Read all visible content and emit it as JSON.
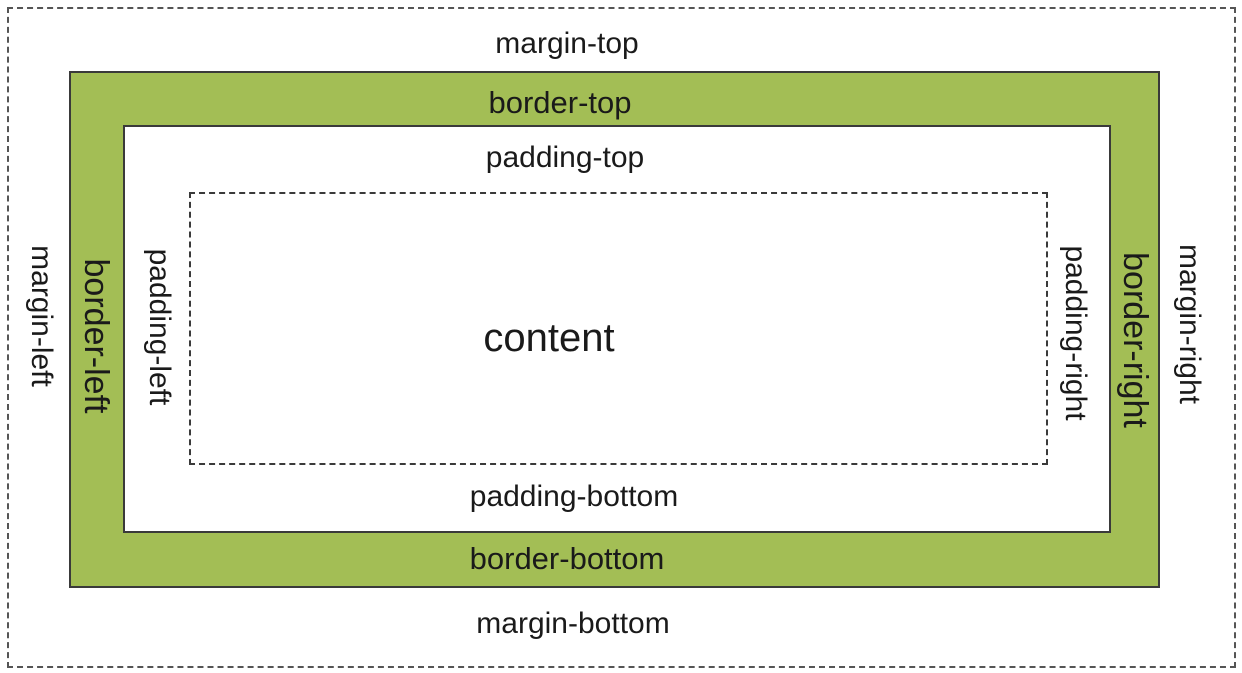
{
  "colors": {
    "border_fill": "#a3be55",
    "line": "#3a3a3a",
    "background": "#ffffff"
  },
  "labels": {
    "margin_top": "margin-top",
    "margin_bottom": "margin-bottom",
    "margin_left": "margin-left",
    "margin_right": "margin-right",
    "border_top": "border-top",
    "border_bottom": "border-bottom",
    "border_left": "border-left",
    "border_right": "border-right",
    "padding_top": "padding-top",
    "padding_bottom": "padding-bottom",
    "padding_left": "padding-left",
    "padding_right": "padding-right",
    "content": "content"
  }
}
